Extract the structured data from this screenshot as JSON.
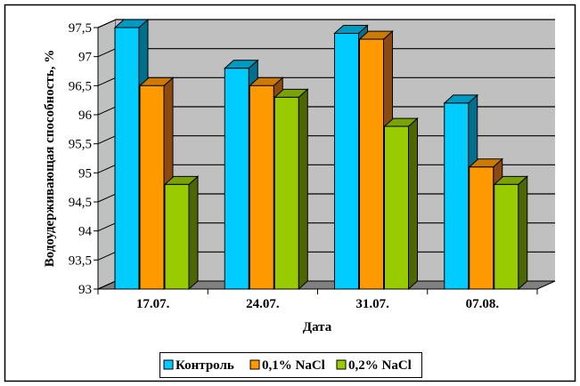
{
  "chart_data": {
    "type": "bar",
    "style": "3d-clustered-column",
    "title": "",
    "xlabel": "Дата",
    "ylabel": "Водоудерживающая способность, %",
    "categories": [
      "17.07.",
      "24.07.",
      "31.07.",
      "07.08."
    ],
    "series": [
      {
        "name": "Контроль",
        "color": "#00ccff",
        "side_color": "#006f8c",
        "top_color": "#0099bf",
        "values": [
          97.5,
          96.8,
          97.4,
          96.2
        ]
      },
      {
        "name": "0,1% NaCl",
        "color": "#ff9900",
        "side_color": "#8c4a10",
        "top_color": "#cc7a00",
        "values": [
          96.5,
          96.5,
          97.3,
          95.1
        ]
      },
      {
        "name": "0,2% NaCl",
        "color": "#99cc00",
        "side_color": "#4d6600",
        "top_color": "#7aa300",
        "values": [
          94.8,
          96.3,
          95.8,
          94.8
        ]
      }
    ],
    "ylim": [
      93,
      97.5
    ],
    "yticks": [
      93,
      93.5,
      94,
      94.5,
      95,
      95.5,
      96,
      96.5,
      97,
      97.5
    ],
    "ytick_labels": [
      "93",
      "93,5",
      "94",
      "94,5",
      "95",
      "95,5",
      "96",
      "96,5",
      "97",
      "97,5"
    ],
    "grid": true,
    "wall_color": "#c0c0c0",
    "floor_color": "#808080",
    "legend_position": "bottom"
  }
}
